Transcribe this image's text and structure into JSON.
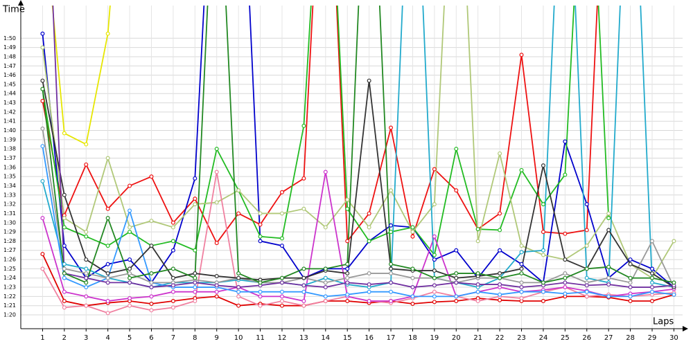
{
  "chart_data": {
    "type": "line",
    "ylabel": "Time",
    "xlabel": "Laps",
    "x": [
      1,
      2,
      3,
      4,
      5,
      6,
      7,
      8,
      9,
      10,
      11,
      12,
      13,
      14,
      15,
      16,
      17,
      18,
      19,
      20,
      21,
      22,
      23,
      24,
      25,
      26,
      27,
      28,
      29,
      30
    ],
    "xlim": [
      0,
      30.4
    ],
    "xticks": [
      1,
      2,
      3,
      4,
      5,
      6,
      7,
      8,
      9,
      10,
      11,
      12,
      13,
      14,
      15,
      16,
      17,
      18,
      19,
      20,
      21,
      22,
      23,
      24,
      25,
      26,
      27,
      28,
      29,
      30
    ],
    "ylim": [
      78.5,
      113.4
    ],
    "yticks": [
      {
        "value": 80,
        "label": "1:20"
      },
      {
        "value": 81,
        "label": "1:21"
      },
      {
        "value": 82,
        "label": "1:22"
      },
      {
        "value": 83,
        "label": "1:23"
      },
      {
        "value": 84,
        "label": "1:24"
      },
      {
        "value": 85,
        "label": "1:25"
      },
      {
        "value": 86,
        "label": "1:26"
      },
      {
        "value": 87,
        "label": "1:27"
      },
      {
        "value": 88,
        "label": "1:28"
      },
      {
        "value": 89,
        "label": "1:29"
      },
      {
        "value": 90,
        "label": "1:30"
      },
      {
        "value": 91,
        "label": "1:31"
      },
      {
        "value": 92,
        "label": "1:32"
      },
      {
        "value": 93,
        "label": "1:33"
      },
      {
        "value": 94,
        "label": "1:34"
      },
      {
        "value": 95,
        "label": "1:35"
      },
      {
        "value": 96,
        "label": "1:36"
      },
      {
        "value": 97,
        "label": "1:37"
      },
      {
        "value": 98,
        "label": "1:38"
      },
      {
        "value": 99,
        "label": "1:39"
      },
      {
        "value": 100,
        "label": "1:40"
      },
      {
        "value": 101,
        "label": "1:41"
      },
      {
        "value": 102,
        "label": "1:42"
      },
      {
        "value": 103,
        "label": "1:43"
      },
      {
        "value": 104,
        "label": "1:44"
      },
      {
        "value": 105,
        "label": "1:45"
      },
      {
        "value": 106,
        "label": "1:46"
      },
      {
        "value": 107,
        "label": "1:47"
      },
      {
        "value": 108,
        "label": "1:48"
      },
      {
        "value": 109,
        "label": "1:49"
      },
      {
        "value": 110,
        "label": "1:50"
      }
    ],
    "grid": true,
    "series": [
      {
        "color": "#e00000",
        "values": [
          86.6,
          81.5,
          81,
          81.3,
          81.5,
          81.2,
          81.5,
          81.8,
          82,
          81,
          81.2,
          81,
          81,
          81.5,
          81.5,
          81.3,
          81.5,
          81.2,
          81.4,
          81.5,
          81.8,
          81.6,
          81.5,
          81.5,
          82,
          82,
          81.9,
          81.5,
          81.5,
          82.2
        ]
      },
      {
        "color": "#ee1111",
        "values": [
          103.2,
          90.8,
          96.3,
          91.5,
          94,
          95,
          90,
          92.6,
          87.8,
          91,
          89.8,
          93.3,
          94.8,
          140,
          88,
          91,
          100.3,
          88.5,
          95.8,
          93.5,
          89.3,
          91,
          108.2,
          89,
          88.8,
          89.2,
          140,
          null,
          null,
          null
        ]
      },
      {
        "color": "#e6e600",
        "values": [
          125,
          99.7,
          98.5,
          110.5,
          140,
          null,
          null,
          null,
          null,
          null,
          null,
          null,
          null,
          null,
          null,
          null,
          null,
          null,
          null,
          null,
          null,
          null,
          null,
          null,
          null,
          null,
          null,
          null,
          null,
          null
        ]
      },
      {
        "color": "#0000cc",
        "values": [
          110.5,
          87.5,
          84,
          85.5,
          86,
          83.5,
          87,
          94.8,
          140,
          140,
          88,
          87.5,
          84,
          85,
          85,
          88,
          89.7,
          89.5,
          86,
          87,
          84,
          87,
          85.5,
          83.5,
          98.8,
          92,
          84,
          86,
          85,
          83
        ]
      },
      {
        "color": "#22bb22",
        "values": [
          104.5,
          89.5,
          88.5,
          87.5,
          89,
          87.5,
          88,
          87,
          98,
          93.5,
          88.5,
          88.3,
          100.5,
          140,
          91.5,
          88,
          89,
          89.5,
          86.5,
          98,
          89.3,
          89.2,
          95.7,
          92,
          95.2,
          140,
          90.5,
          null,
          null,
          null
        ]
      },
      {
        "color": "#b0c878",
        "values": [
          109,
          90.5,
          89,
          97,
          89.5,
          90.2,
          89.5,
          92,
          92.2,
          93.5,
          91,
          91,
          91.5,
          89.5,
          92.5,
          89.5,
          93.5,
          89,
          92,
          140,
          88,
          97.5,
          87.5,
          86.5,
          86,
          87.5,
          91,
          85.5,
          84,
          88
        ]
      },
      {
        "color": "#f080a0",
        "values": [
          85,
          80.8,
          81,
          80.2,
          81,
          80.5,
          80.8,
          81.5,
          95.5,
          82,
          81,
          81.5,
          81,
          81.5,
          82,
          81.5,
          81.3,
          81.8,
          82.5,
          82,
          81.5,
          82,
          81.8,
          82.5,
          83,
          82,
          82.2,
          82,
          82.2,
          82.4
        ]
      },
      {
        "color": "#cc33cc",
        "values": [
          90.5,
          82.5,
          82,
          81.5,
          81.8,
          82,
          82.5,
          82.5,
          82.5,
          83,
          82,
          82,
          81.5,
          95.5,
          82,
          81.5,
          81.5,
          82,
          88.5,
          82,
          82.5,
          83,
          82.5,
          82.7,
          83,
          82.6,
          82,
          82.3,
          82.5,
          82.8
        ]
      },
      {
        "color": "#22aacc",
        "values": [
          94.5,
          85.5,
          85,
          84,
          83.5,
          83,
          83.5,
          83.5,
          83.5,
          83.8,
          83.5,
          83.5,
          83.2,
          84,
          83.3,
          83,
          83.5,
          140,
          84,
          83.5,
          83,
          84,
          86.8,
          87,
          140,
          84,
          83.5,
          140,
          83.5,
          83
        ]
      },
      {
        "color": "#3399ff",
        "values": [
          98.3,
          84,
          83,
          84,
          91.3,
          83.5,
          83,
          83,
          83,
          82.5,
          82.5,
          82.5,
          82.5,
          82,
          82.2,
          82.5,
          82.5,
          82,
          82,
          82,
          82.5,
          82.2,
          82.5,
          82.5,
          82.3,
          82.5,
          82,
          82,
          82.5,
          82.2
        ]
      },
      {
        "color": "#999999",
        "values": [
          100.2,
          85,
          84.5,
          84,
          84.5,
          83.5,
          83.5,
          83.8,
          83.5,
          84,
          83.5,
          83.5,
          84,
          83.5,
          84,
          84.5,
          84.5,
          84,
          84,
          83.5,
          84,
          84,
          83.5,
          83.5,
          84.5,
          83.5,
          84,
          83.5,
          88,
          83
        ]
      },
      {
        "color": "#333333",
        "values": [
          105.4,
          93,
          86,
          84.5,
          85,
          87.5,
          84,
          84.5,
          84.2,
          84,
          83.8,
          84,
          84,
          84.8,
          84.5,
          105.4,
          85,
          84.8,
          84.8,
          84,
          84.2,
          84.5,
          85,
          96.2,
          86,
          85,
          89.2,
          85.5,
          84.5,
          83
        ]
      },
      {
        "color": "#7030a0",
        "values": [
          140,
          84.5,
          84,
          83.5,
          83.5,
          83,
          83.2,
          83.5,
          83.2,
          83,
          83.2,
          83.5,
          83.2,
          83,
          83.5,
          83.3,
          83.5,
          83,
          83.2,
          83.5,
          83.3,
          83.3,
          83,
          83.2,
          83.5,
          83.2,
          83.3,
          83,
          83,
          83.2
        ]
      },
      {
        "color": "#228822",
        "values": [
          104.5,
          84.5,
          83.5,
          90.5,
          84,
          84.5,
          85,
          84,
          135,
          84.5,
          83.5,
          84,
          85,
          85,
          85.5,
          140,
          85.5,
          85,
          84,
          84.5,
          84.5,
          84,
          84.5,
          83.5,
          84,
          85,
          85.2,
          84,
          84,
          83.5
        ]
      }
    ]
  }
}
